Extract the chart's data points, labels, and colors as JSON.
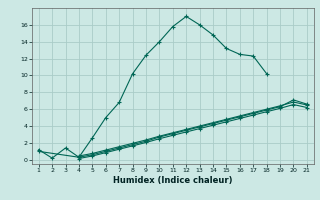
{
  "xlabel": "Humidex (Indice chaleur)",
  "bg_color": "#cce8e4",
  "grid_color": "#aaccc8",
  "line_color": "#006655",
  "x_values": [
    1,
    2,
    3,
    4,
    5,
    6,
    7,
    8,
    9,
    10,
    11,
    12,
    13,
    14,
    15,
    16,
    17,
    18,
    19,
    20,
    21
  ],
  "line1_y": [
    1.2,
    0.2,
    1.4,
    0.3,
    2.6,
    5.0,
    6.8,
    10.2,
    12.4,
    14.0,
    15.8,
    17.0,
    16.0,
    14.8,
    13.2,
    12.5,
    12.3,
    10.2,
    null,
    null,
    null
  ],
  "line2_y": [
    1.0,
    null,
    null,
    0.3,
    0.6,
    1.0,
    1.4,
    1.8,
    2.2,
    2.7,
    3.1,
    3.5,
    3.9,
    4.3,
    4.7,
    5.1,
    5.5,
    5.9,
    6.3,
    7.1,
    6.6
  ],
  "line3_y": [
    null,
    null,
    null,
    0.15,
    0.45,
    0.85,
    1.25,
    1.65,
    2.05,
    2.5,
    2.9,
    3.3,
    3.7,
    4.1,
    4.5,
    4.9,
    5.3,
    5.7,
    6.1,
    6.55,
    6.2
  ],
  "line4_y": [
    null,
    null,
    null,
    0.45,
    0.75,
    1.15,
    1.55,
    1.95,
    2.35,
    2.8,
    3.2,
    3.6,
    4.0,
    4.4,
    4.8,
    5.2,
    5.6,
    6.0,
    6.4,
    6.85,
    6.5
  ],
  "ylim": [
    -0.5,
    18
  ],
  "xlim": [
    0.5,
    21.5
  ],
  "yticks": [
    0,
    2,
    4,
    6,
    8,
    10,
    12,
    14,
    16
  ],
  "xticks": [
    1,
    2,
    3,
    4,
    5,
    6,
    7,
    8,
    9,
    10,
    11,
    12,
    13,
    14,
    15,
    16,
    17,
    18,
    19,
    20,
    21
  ]
}
